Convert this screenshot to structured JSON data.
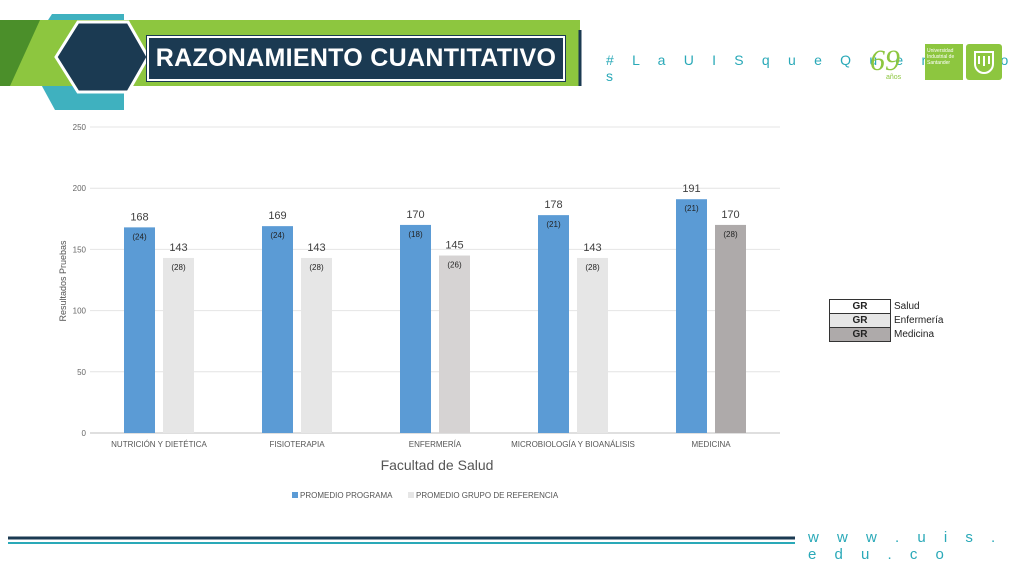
{
  "header": {
    "title": "RAZONAMIENTO CUANTITATIVO",
    "hashtag": "# L a U I S q u e Q u e r e m o s",
    "anniversary_number": "69",
    "anniversary_word": "años",
    "university_name": "Universidad Industrial de Santander",
    "colors": {
      "navy": "#1b3a52",
      "green": "#8dc63f",
      "teal": "#2aa9b8"
    }
  },
  "footer": {
    "url": "w w w . u i s . e d u . c o"
  },
  "legend_table": [
    {
      "code": "GR",
      "label": "Salud",
      "color": "#ffffff"
    },
    {
      "code": "GR",
      "label": "Enfermería",
      "color": "#e6e6e6"
    },
    {
      "code": "GR",
      "label": "Medicina",
      "color": "#aeaaaa"
    }
  ],
  "chart_data": {
    "type": "bar",
    "xlabel": "Facultad de Salud",
    "ylabel": "Resultados Pruebas",
    "ylim": [
      0,
      250
    ],
    "yticks": [
      0,
      50,
      100,
      150,
      200,
      250
    ],
    "grid": true,
    "legend_position": "bottom",
    "categories": [
      "NUTRICIÓN Y DIETÉTICA",
      "FISIOTERAPIA",
      "ENFERMERÍA",
      "MICROBIOLOGÍA Y BIOANÁLISIS",
      "MEDICINA"
    ],
    "series": [
      {
        "name": "PROMEDIO PROGRAMA",
        "color": "#5b9bd5",
        "values": [
          168,
          169,
          170,
          178,
          191
        ],
        "sub_labels": [
          "(24)",
          "(24)",
          "(18)",
          "(21)",
          "(21)"
        ]
      },
      {
        "name": "PROMEDIO GRUPO DE REFERENCIA",
        "color": "#e6e6e6",
        "point_colors": [
          "#e6e6e6",
          "#e6e6e6",
          "#d6d3d3",
          "#e6e6e6",
          "#aeaaaa"
        ],
        "values": [
          143,
          143,
          145,
          143,
          170
        ],
        "sub_labels": [
          "(28)",
          "(28)",
          "(26)",
          "(28)",
          "(28)"
        ]
      }
    ]
  }
}
